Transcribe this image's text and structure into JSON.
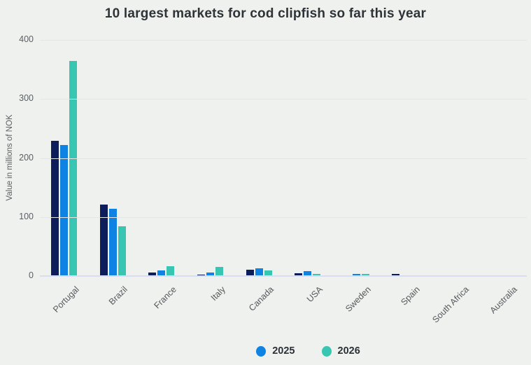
{
  "title": "10 largest markets for cod clipfish so far this year",
  "colors": {
    "background": "#eff1ee",
    "title_text": "#2e3338",
    "axis_text": "#5a5f63",
    "gridline": "#e3e6e2",
    "baseline": "#d9ddf1",
    "series_navy": "#0d1d5c",
    "series_blue": "#0e83e4",
    "series_teal": "#38c5b2"
  },
  "chart_data": {
    "type": "bar",
    "title": "10 largest markets for cod clipfish so far this year",
    "xlabel": "",
    "ylabel": "Value in millions of NOK",
    "ylim": [
      0,
      400
    ],
    "yticks": [
      0,
      100,
      200,
      300,
      400
    ],
    "grid": true,
    "legend_position": "bottom",
    "categories": [
      "Portugal",
      "Brazil",
      "France",
      "Italy",
      "Canada",
      "USA",
      "Sweden",
      "Spain",
      "South Africa",
      "Australia"
    ],
    "series": [
      {
        "name": "",
        "in_legend": false,
        "color": "#0d1d5c",
        "values": [
          229,
          121,
          6,
          2,
          11,
          5,
          1,
          3,
          1,
          0.5
        ]
      },
      {
        "name": "2025",
        "in_legend": true,
        "color": "#0e83e4",
        "values": [
          222,
          114,
          9,
          6,
          13,
          8,
          3,
          1,
          1,
          0.5
        ]
      },
      {
        "name": "2026",
        "in_legend": true,
        "color": "#38c5b2",
        "values": [
          364,
          84,
          17,
          15,
          9,
          3,
          4,
          1,
          1,
          0.5
        ]
      }
    ],
    "legend": [
      "2025",
      "2026"
    ]
  }
}
